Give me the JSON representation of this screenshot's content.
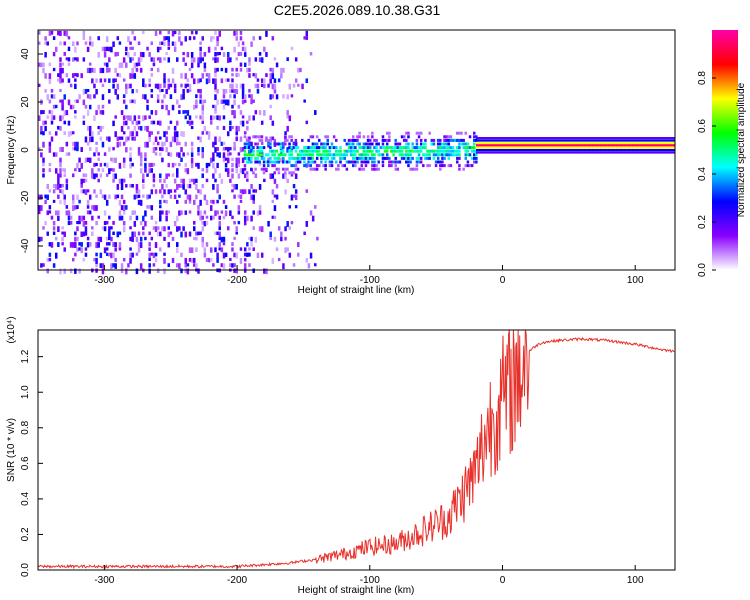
{
  "title": "C2E5.2026.089.10.38.G31",
  "chart_data": [
    {
      "type": "heatmap",
      "panel": "top",
      "xlabel": "Height of straight line (km)",
      "ylabel": "Frequency (Hz)",
      "xlim": [
        -350,
        130
      ],
      "ylim": [
        -50,
        50
      ],
      "xticks": [
        -300,
        -200,
        -100,
        0,
        100
      ],
      "yticks": [
        -40,
        -20,
        0,
        20,
        40
      ],
      "colorbar": {
        "label": "Normalized spectral amplitude",
        "range": [
          0.0,
          1.0
        ],
        "ticks": [
          0.0,
          0.2,
          0.4,
          0.6,
          0.8
        ],
        "colors": [
          "#ffffff",
          "#8800ff",
          "#0000ff",
          "#00ffff",
          "#00ff00",
          "#ffff00",
          "#ff0000",
          "#ff00aa"
        ]
      },
      "features": [
        {
          "region": "x -350 to -195 km",
          "description": "scattered noise, amplitude ~0.1-0.3 across all frequencies"
        },
        {
          "region": "x -195 to -140 km",
          "description": "sparse noise fading out"
        },
        {
          "region": "x -195 to -20 km",
          "description": "band near 0 Hz, amplitude 0.2-0.5, slight negative drift"
        },
        {
          "region": "x -20 to 130 km",
          "description": "narrow line at about 2 Hz, amplitude ~0.9-1.0"
        }
      ]
    },
    {
      "type": "line",
      "panel": "bottom",
      "xlabel": "Height of straight line (km)",
      "ylabel": "SNR (10 * v/v)",
      "y_multiplier": "(x10⁴)",
      "xlim": [
        -350,
        130
      ],
      "ylim": [
        0,
        1.35
      ],
      "xticks": [
        -300,
        -200,
        -100,
        0,
        100
      ],
      "yticks": [
        "0.0",
        "0.2",
        "0.4",
        "0.6",
        "0.8",
        "1.0",
        "1.2"
      ],
      "series": [
        {
          "name": "SNR",
          "color": "#e8302a",
          "x": [
            -350,
            -300,
            -250,
            -200,
            -180,
            -160,
            -140,
            -120,
            -100,
            -80,
            -60,
            -40,
            -30,
            -20,
            -15,
            -10,
            -5,
            0,
            5,
            10,
            15,
            20,
            25,
            30,
            40,
            60,
            80,
            100,
            120,
            130
          ],
          "y": [
            0.02,
            0.02,
            0.02,
            0.02,
            0.03,
            0.04,
            0.06,
            0.09,
            0.13,
            0.15,
            0.22,
            0.3,
            0.42,
            0.55,
            0.7,
            0.82,
            0.9,
            0.95,
            1.0,
            1.1,
            1.18,
            1.23,
            1.26,
            1.28,
            1.29,
            1.3,
            1.29,
            1.27,
            1.24,
            1.23
          ]
        }
      ]
    }
  ]
}
